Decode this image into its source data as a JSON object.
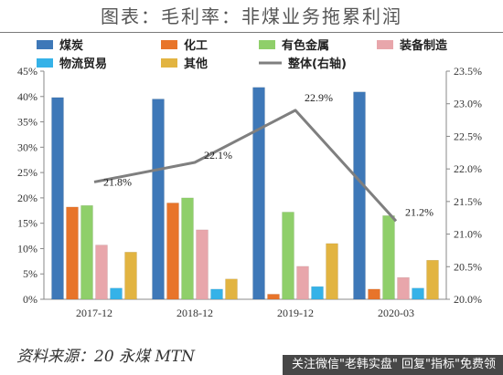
{
  "title": "图表：毛利率：非煤业务拖累利润",
  "source_text": "资料来源：20 永煤 MTN",
  "watermark_text": "关注微信\"老韩实盘\" 回复\"指标\"免费领",
  "chart_data": {
    "type": "bar",
    "categories": [
      "2017-12",
      "2018-12",
      "2019-12",
      "2020-03"
    ],
    "series": [
      {
        "name": "煤炭",
        "values": [
          39.8,
          39.5,
          41.8,
          40.9
        ],
        "color": "#3e78b8"
      },
      {
        "name": "化工",
        "values": [
          18.2,
          19.0,
          1.0,
          2.0
        ],
        "color": "#e8742a"
      },
      {
        "name": "有色金属",
        "values": [
          18.5,
          20.0,
          17.2,
          16.5
        ],
        "color": "#8fcf6a"
      },
      {
        "name": "装备制造",
        "values": [
          10.7,
          13.7,
          6.5,
          4.3
        ],
        "color": "#e8a6ab"
      },
      {
        "name": "物流贸易",
        "values": [
          2.2,
          2.0,
          2.5,
          2.2
        ],
        "color": "#35b2e8"
      },
      {
        "name": "其他",
        "values": [
          9.3,
          4.0,
          11.0,
          7.7
        ],
        "color": "#e2b441"
      }
    ],
    "line_series": {
      "name": "整体(右轴)",
      "values": [
        21.8,
        22.1,
        22.9,
        21.2
      ],
      "labels": [
        "21.8%",
        "22.1%",
        "22.9%",
        "21.2%"
      ],
      "color": "#7f7f7f"
    },
    "left_axis": {
      "ylim": [
        0,
        45
      ],
      "ticks": [
        0,
        5,
        10,
        15,
        20,
        25,
        30,
        35,
        40,
        45
      ],
      "tick_labels": [
        "0%",
        "5%",
        "10%",
        "15%",
        "20%",
        "25%",
        "30%",
        "35%",
        "40%",
        "45%"
      ]
    },
    "right_axis": {
      "ylim": [
        20.0,
        23.5
      ],
      "ticks": [
        20.0,
        20.5,
        21.0,
        21.5,
        22.0,
        22.5,
        23.0,
        23.5
      ],
      "tick_labels": [
        "20.0%",
        "20.5%",
        "21.0%",
        "21.5%",
        "22.0%",
        "22.5%",
        "23.0%",
        "23.5%"
      ]
    },
    "grid": false,
    "legend_position": "top"
  }
}
